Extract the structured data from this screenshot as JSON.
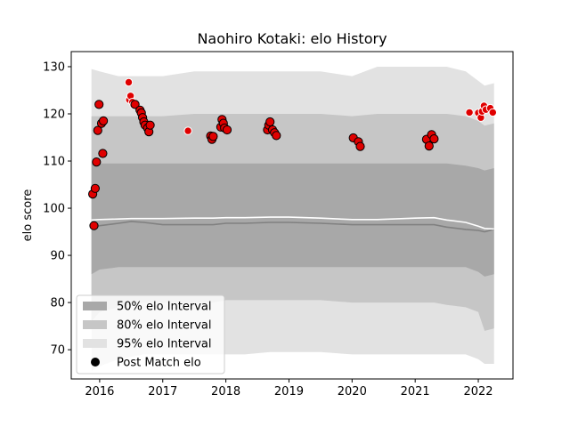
{
  "chart_data": {
    "type": "scatter",
    "title": "Naohiro Kotaki: elo History",
    "xlabel": "",
    "ylabel": "elo score",
    "xlim": [
      2015.55,
      2022.55
    ],
    "ylim": [
      63.8,
      133.2
    ],
    "xticks": [
      2016,
      2017,
      2018,
      2019,
      2020,
      2021,
      2022
    ],
    "xtick_labels": [
      "2016",
      "2017",
      "2018",
      "2019",
      "2020",
      "2021",
      "2022"
    ],
    "yticks": [
      70,
      80,
      90,
      100,
      110,
      120,
      130
    ],
    "ytick_labels": [
      "70",
      "80",
      "90",
      "100",
      "110",
      "120",
      "130"
    ],
    "grid": false,
    "legend_position": "lower-left",
    "legend": [
      {
        "label": "50% elo Interval",
        "kind": "band50"
      },
      {
        "label": "80% elo Interval",
        "kind": "band80"
      },
      {
        "label": "95% elo Interval",
        "kind": "band95"
      },
      {
        "label": "Post Match elo",
        "kind": "marker"
      }
    ],
    "colors": {
      "band50": "#a8a8a8",
      "band80": "#c6c6c6",
      "band95": "#e2e2e2",
      "median_line": "#808080",
      "mean_line": "#ffffff",
      "marker_fill": "#e00000",
      "marker_edge_outlined": "#000000",
      "marker_edge_light": "#ffffff"
    },
    "bands": {
      "x": [
        2015.87,
        2016.0,
        2016.3,
        2016.5,
        2016.7,
        2017.0,
        2017.5,
        2017.8,
        2018.0,
        2018.3,
        2018.7,
        2019.0,
        2019.5,
        2020.0,
        2020.4,
        2021.0,
        2021.3,
        2021.5,
        2021.8,
        2022.0,
        2022.1,
        2022.25
      ],
      "p95_low": [
        65.5,
        66.5,
        68.0,
        68.5,
        69.0,
        69.0,
        69.0,
        69.0,
        69.0,
        69.0,
        69.5,
        69.5,
        69.5,
        69.0,
        69.0,
        69.0,
        69.0,
        69.0,
        69.0,
        68.0,
        67.0,
        67.0
      ],
      "p95_high": [
        129.5,
        129.0,
        128.0,
        128.0,
        128.0,
        128.0,
        129.0,
        129.0,
        129.0,
        129.0,
        129.0,
        129.0,
        129.0,
        128.0,
        130.0,
        130.0,
        130.0,
        130.0,
        129.0,
        127.0,
        126.0,
        126.5
      ],
      "p80_low": [
        76.0,
        78.0,
        79.0,
        79.5,
        80.0,
        80.0,
        80.0,
        80.0,
        80.5,
        80.5,
        80.5,
        80.5,
        80.5,
        80.0,
        80.0,
        80.0,
        80.0,
        79.5,
        79.0,
        78.0,
        74.0,
        74.5
      ],
      "p80_high": [
        119.5,
        119.5,
        119.5,
        119.5,
        119.5,
        119.5,
        120.0,
        120.0,
        120.0,
        120.0,
        120.0,
        120.0,
        120.0,
        119.5,
        120.0,
        120.0,
        120.0,
        120.0,
        119.5,
        118.5,
        117.5,
        118.0
      ],
      "p50_low": [
        86.0,
        87.0,
        87.5,
        87.5,
        87.5,
        87.5,
        87.5,
        87.5,
        87.5,
        87.5,
        87.5,
        87.5,
        87.5,
        87.5,
        87.5,
        87.5,
        87.5,
        87.5,
        87.5,
        86.5,
        85.5,
        86.0
      ],
      "p50_high": [
        109.5,
        109.5,
        109.5,
        109.5,
        109.5,
        109.5,
        109.5,
        109.5,
        109.5,
        109.5,
        109.5,
        109.5,
        109.5,
        109.5,
        109.5,
        109.5,
        109.5,
        109.5,
        109.0,
        108.5,
        108.0,
        108.5
      ],
      "median": [
        95.8,
        96.3,
        96.8,
        97.2,
        97.0,
        96.5,
        96.5,
        96.5,
        96.8,
        96.8,
        97.0,
        97.0,
        96.8,
        96.5,
        96.5,
        96.5,
        96.5,
        96.0,
        95.5,
        95.3,
        95.0,
        95.5
      ],
      "mean": [
        97.5,
        97.6,
        97.7,
        97.8,
        97.8,
        97.8,
        97.9,
        97.9,
        98.0,
        98.0,
        98.1,
        98.1,
        97.9,
        97.6,
        97.6,
        97.9,
        98.0,
        97.5,
        97.0,
        96.2,
        95.7,
        95.6
      ]
    },
    "points": [
      {
        "x": 2015.89,
        "y": 103.0,
        "edge": "outlined"
      },
      {
        "x": 2015.91,
        "y": 96.3,
        "edge": "outlined"
      },
      {
        "x": 2015.93,
        "y": 104.2,
        "edge": "outlined"
      },
      {
        "x": 2015.95,
        "y": 109.8,
        "edge": "outlined"
      },
      {
        "x": 2015.97,
        "y": 116.5,
        "edge": "outlined"
      },
      {
        "x": 2015.99,
        "y": 122.0,
        "edge": "outlined"
      },
      {
        "x": 2016.03,
        "y": 118.0,
        "edge": "outlined"
      },
      {
        "x": 2016.05,
        "y": 111.6,
        "edge": "outlined"
      },
      {
        "x": 2016.06,
        "y": 118.5,
        "edge": "outlined"
      },
      {
        "x": 2016.46,
        "y": 126.7,
        "edge": "light"
      },
      {
        "x": 2016.47,
        "y": 123.0,
        "edge": "light"
      },
      {
        "x": 2016.49,
        "y": 123.8,
        "edge": "light"
      },
      {
        "x": 2016.52,
        "y": 122.5,
        "edge": "light"
      },
      {
        "x": 2016.54,
        "y": 121.9,
        "edge": "light"
      },
      {
        "x": 2016.56,
        "y": 122.0,
        "edge": "outlined"
      },
      {
        "x": 2016.64,
        "y": 120.8,
        "edge": "outlined"
      },
      {
        "x": 2016.66,
        "y": 120.2,
        "edge": "outlined"
      },
      {
        "x": 2016.68,
        "y": 119.2,
        "edge": "outlined"
      },
      {
        "x": 2016.7,
        "y": 118.3,
        "edge": "outlined"
      },
      {
        "x": 2016.72,
        "y": 117.6,
        "edge": "outlined"
      },
      {
        "x": 2016.76,
        "y": 117.0,
        "edge": "outlined"
      },
      {
        "x": 2016.78,
        "y": 116.2,
        "edge": "outlined"
      },
      {
        "x": 2016.8,
        "y": 117.6,
        "edge": "outlined"
      },
      {
        "x": 2017.4,
        "y": 116.4,
        "edge": "light"
      },
      {
        "x": 2017.76,
        "y": 115.3,
        "edge": "outlined"
      },
      {
        "x": 2017.78,
        "y": 114.6,
        "edge": "outlined"
      },
      {
        "x": 2017.8,
        "y": 115.2,
        "edge": "outlined"
      },
      {
        "x": 2017.92,
        "y": 117.2,
        "edge": "outlined"
      },
      {
        "x": 2017.94,
        "y": 118.8,
        "edge": "outlined"
      },
      {
        "x": 2017.96,
        "y": 118.0,
        "edge": "outlined"
      },
      {
        "x": 2017.98,
        "y": 117.0,
        "edge": "outlined"
      },
      {
        "x": 2018.02,
        "y": 116.6,
        "edge": "outlined"
      },
      {
        "x": 2018.66,
        "y": 116.6,
        "edge": "outlined"
      },
      {
        "x": 2018.68,
        "y": 117.6,
        "edge": "outlined"
      },
      {
        "x": 2018.7,
        "y": 118.3,
        "edge": "outlined"
      },
      {
        "x": 2018.74,
        "y": 116.6,
        "edge": "outlined"
      },
      {
        "x": 2018.77,
        "y": 116.0,
        "edge": "outlined"
      },
      {
        "x": 2018.8,
        "y": 115.4,
        "edge": "outlined"
      },
      {
        "x": 2020.02,
        "y": 114.9,
        "edge": "outlined"
      },
      {
        "x": 2020.1,
        "y": 114.1,
        "edge": "outlined"
      },
      {
        "x": 2020.13,
        "y": 113.1,
        "edge": "outlined"
      },
      {
        "x": 2021.18,
        "y": 114.6,
        "edge": "outlined"
      },
      {
        "x": 2021.22,
        "y": 113.2,
        "edge": "outlined"
      },
      {
        "x": 2021.26,
        "y": 115.6,
        "edge": "outlined"
      },
      {
        "x": 2021.3,
        "y": 114.7,
        "edge": "outlined"
      },
      {
        "x": 2021.86,
        "y": 120.3,
        "edge": "light"
      },
      {
        "x": 2022.0,
        "y": 120.2,
        "edge": "light"
      },
      {
        "x": 2022.04,
        "y": 119.2,
        "edge": "light"
      },
      {
        "x": 2022.06,
        "y": 120.5,
        "edge": "light"
      },
      {
        "x": 2022.09,
        "y": 121.7,
        "edge": "light"
      },
      {
        "x": 2022.12,
        "y": 120.9,
        "edge": "light"
      },
      {
        "x": 2022.19,
        "y": 121.2,
        "edge": "light"
      },
      {
        "x": 2022.23,
        "y": 120.3,
        "edge": "light"
      }
    ]
  }
}
